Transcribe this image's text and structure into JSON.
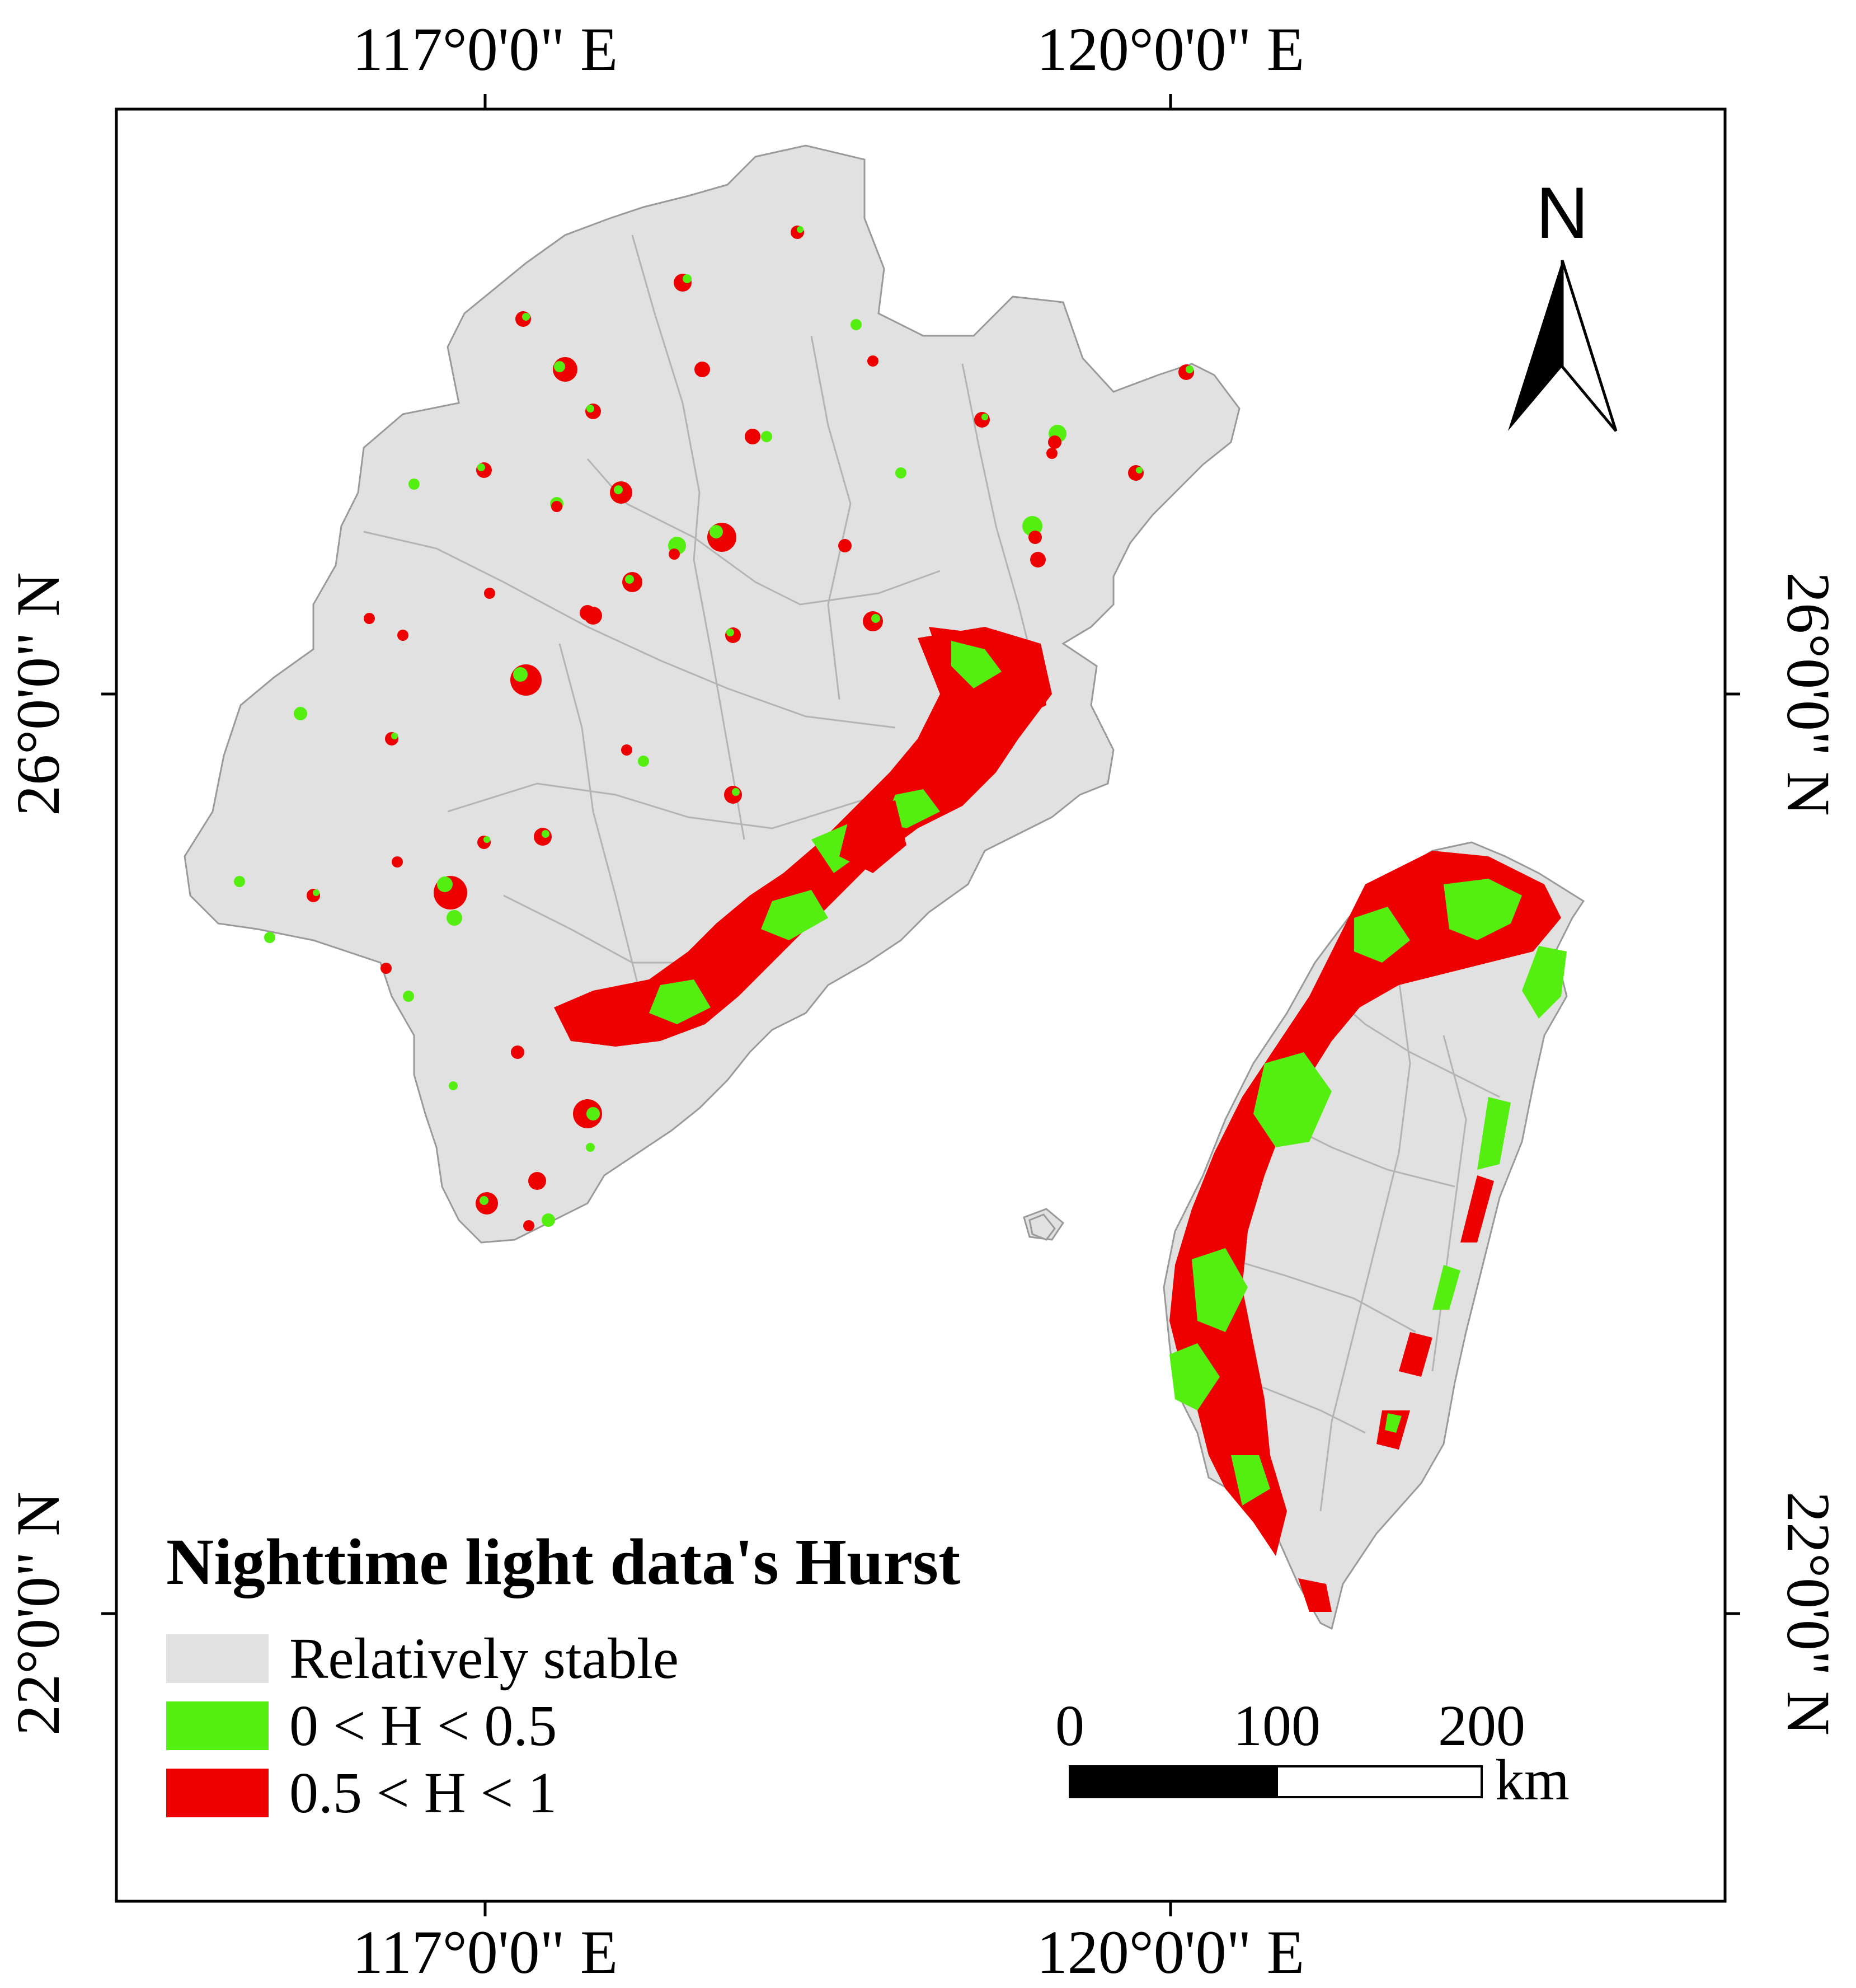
{
  "map": {
    "graticule": {
      "top_labels": [
        "117°0'0\" E",
        "120°0'0\" E"
      ],
      "bottom_labels": [
        "117°0'0\" E",
        "120°0'0\" E"
      ],
      "left_labels": [
        "26°0'0\" N",
        "22°0'0\" N"
      ],
      "right_labels": [
        "26°0'0\" N",
        "22°0'0\" N"
      ]
    },
    "north_arrow": {
      "label": "N"
    },
    "legend": {
      "title": "Nighttime light data's Hurst",
      "items": [
        {
          "label": "Relatively stable",
          "color": "#e1e1e1"
        },
        {
          "label": "0 < H < 0.5",
          "color": "#55ee11"
        },
        {
          "label": "0.5 < H < 1",
          "color": "#ee0000"
        }
      ]
    },
    "scale_bar": {
      "ticks": [
        "0",
        "100",
        "200"
      ],
      "unit": "km"
    },
    "colors": {
      "land": "#e1e1e1",
      "boundary": "#b4b4b4",
      "green": "#55ee11",
      "red": "#ee0000"
    }
  }
}
